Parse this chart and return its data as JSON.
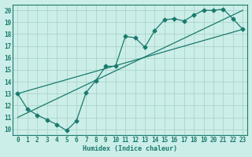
{
  "xlabel": "Humidex (Indice chaleur)",
  "bg_color": "#cceee8",
  "line_color": "#1a7a6e",
  "grid_color": "#aad4cc",
  "xlim": [
    -0.5,
    23.5
  ],
  "ylim": [
    9.5,
    20.5
  ],
  "xticks": [
    0,
    1,
    2,
    3,
    4,
    5,
    6,
    7,
    8,
    9,
    10,
    11,
    12,
    13,
    14,
    15,
    16,
    17,
    18,
    19,
    20,
    21,
    22,
    23
  ],
  "yticks": [
    10,
    11,
    12,
    13,
    14,
    15,
    16,
    17,
    18,
    19,
    20
  ],
  "series": [
    {
      "x": [
        0,
        1,
        2,
        3,
        4,
        5,
        6,
        7,
        8,
        9,
        10,
        11,
        12,
        13,
        14,
        15,
        16,
        17,
        18,
        19,
        20,
        21,
        22,
        23
      ],
      "y": [
        13,
        11.7,
        11.2,
        10.8,
        10.4,
        9.9,
        10.7,
        13.1,
        14.1,
        15.3,
        15.3,
        17.8,
        17.7,
        16.9,
        18.3,
        19.2,
        19.3,
        19.1,
        19.6,
        20.0,
        20.0,
        20.1,
        19.3,
        18.4
      ],
      "marker": "D",
      "markersize": 2.5
    },
    {
      "x": [
        0,
        23
      ],
      "y": [
        11.0,
        20.0
      ],
      "marker": null
    },
    {
      "x": [
        0,
        23
      ],
      "y": [
        13.0,
        18.4
      ],
      "marker": null
    }
  ]
}
